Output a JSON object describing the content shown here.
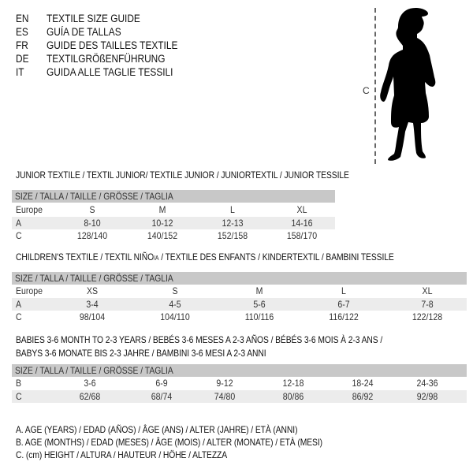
{
  "header": {
    "languages": [
      {
        "code": "EN",
        "title": "TEXTILE SIZE GUIDE"
      },
      {
        "code": "ES",
        "title": "GUÍA DE TALLAS"
      },
      {
        "code": "FR",
        "title": "GUIDE DES TAILLES TEXTILE"
      },
      {
        "code": "DE",
        "title": "TEXTILGRÖßENFÜHRUNG"
      },
      {
        "code": "IT",
        "title": "GUIDA ALLE TAGLIE TESSILI"
      }
    ]
  },
  "figure": {
    "measure_label": "C",
    "icon": "child-silhouette"
  },
  "size_header": "SIZE / TALLA / TAILLE / GRÖSSE / TAGLIA",
  "junior": {
    "title": "JUNIOR TEXTILE / TEXTIL JUNIOR/ TEXTILE JUNIOR / JUNIORTEXTIL / JUNIOR TESSILE",
    "rows": [
      {
        "label": "Europe",
        "values": [
          "S",
          "M",
          "L",
          "XL"
        ]
      },
      {
        "label": "A",
        "values": [
          "8-10",
          "10-12",
          "12-13",
          "14-16"
        ]
      },
      {
        "label": "C",
        "values": [
          "128/140",
          "140/152",
          "152/158",
          "158/170"
        ]
      }
    ]
  },
  "children": {
    "title_a": "CHILDREN'S TEXTILE / TEXTIL NIÑO",
    "title_sub": "/A",
    "title_b": " / TEXTILE DES ENFANTS / KINDERTEXTIL / BAMBINI TESSILE",
    "rows": [
      {
        "label": "Europe",
        "values": [
          "XS",
          "S",
          "M",
          "L",
          "XL"
        ]
      },
      {
        "label": "A",
        "values": [
          "3-4",
          "4-5",
          "5-6",
          "6-7",
          "7-8"
        ]
      },
      {
        "label": "C",
        "values": [
          "98/104",
          "104/110",
          "110/116",
          "116/122",
          "122/128"
        ]
      }
    ]
  },
  "babies": {
    "title_line1": "BABIES 3-6 MONTH TO 2-3 YEARS / BEBÉS 3-6 MESES A 2-3 AÑOS / BÉBÉS 3-6 MOIS À 2-3 ANS /",
    "title_line2": "BABYS 3-6 MONATE BIS 2-3 JAHRE / BAMBINI 3-6 MESI A 2-3 ANNI",
    "rows": [
      {
        "label": "B",
        "values": [
          "3-6",
          "6-9",
          "9-12",
          "12-18",
          "18-24",
          "24-36"
        ]
      },
      {
        "label": "C",
        "values": [
          "62/68",
          "68/74",
          "74/80",
          "80/86",
          "86/92",
          "92/98"
        ]
      }
    ]
  },
  "legend": [
    "A. AGE (YEARS) / EDAD (AÑOS) / ÂGE (ANS) / ALTER (JAHRE) / ETÀ (ANNI)",
    "B. AGE (MONTHS) / EDAD (MESES) / ÂGE (MOIS) / ALTER (MONATE) / ETÀ (MESI)",
    "C. (cm) HEIGHT / ALTURA / HAUTEUR / HÖHE / ALTEZZA"
  ]
}
